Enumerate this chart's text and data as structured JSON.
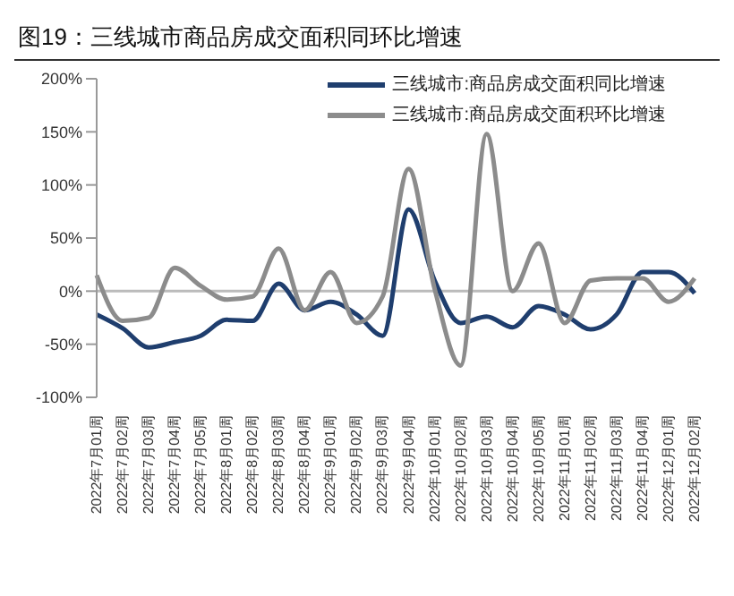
{
  "chart_data": {
    "type": "line",
    "title": "图19：三线城市商品房成交面积同环比增速",
    "categories": [
      "2022年7月01周",
      "2022年7月02周",
      "2022年7月03周",
      "2022年7月04周",
      "2022年7月05周",
      "2022年8月01周",
      "2022年8月02周",
      "2022年8月03周",
      "2022年8月04周",
      "2022年9月01周",
      "2022年9月02周",
      "2022年9月03周",
      "2022年9月04周",
      "2022年10月01周",
      "2022年10月02周",
      "2022年10月03周",
      "2022年10月04周",
      "2022年10月05周",
      "2022年11月01周",
      "2022年11月02周",
      "2022年11月03周",
      "2022年11月04周",
      "2022年12月01周",
      "2022年12月02周"
    ],
    "series": [
      {
        "name": "三线城市:商品房成交面积同比增速",
        "color": "#1f3e6e",
        "values": [
          -22,
          -35,
          -53,
          -48,
          -42,
          -27,
          -28,
          7,
          -18,
          -10,
          -22,
          -42,
          77,
          10,
          -30,
          -24,
          -34,
          -14,
          -22,
          -36,
          -22,
          18,
          18,
          -2
        ]
      },
      {
        "name": "三线城市:商品房成交面积环比增速",
        "color": "#8c8c8c",
        "values": [
          15,
          -28,
          -25,
          22,
          5,
          -8,
          -5,
          40,
          -18,
          18,
          -30,
          -5,
          115,
          2,
          -70,
          148,
          0,
          45,
          -30,
          10,
          12,
          12,
          -10,
          12
        ]
      }
    ],
    "ylim": [
      -100,
      200
    ],
    "yticks": [
      {
        "value": -100,
        "label": "-100%"
      },
      {
        "value": -50,
        "label": "-50%"
      },
      {
        "value": 0,
        "label": "0%"
      },
      {
        "value": 50,
        "label": "50%"
      },
      {
        "value": 100,
        "label": "100%"
      },
      {
        "value": 150,
        "label": "150%"
      },
      {
        "value": 200,
        "label": "200%"
      }
    ],
    "legend": "top right",
    "marker": "none",
    "line_style": "solid"
  }
}
